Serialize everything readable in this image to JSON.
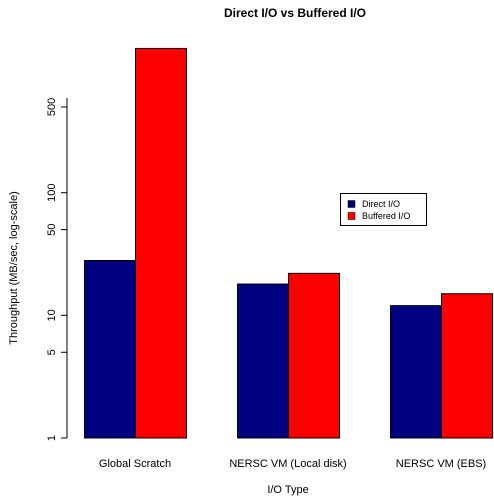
{
  "chart_data": {
    "type": "bar",
    "title": "Direct I/O vs Buffered I/O",
    "xlabel": "I/O Type",
    "ylabel": "Throughput (MB/sec, log-scale)",
    "yscale": "log",
    "ylim": [
      1,
      1600
    ],
    "yticks": [
      1,
      5,
      10,
      50,
      100,
      500
    ],
    "ytick_labels": [
      "1",
      "5",
      "10",
      "50",
      "100",
      "500"
    ],
    "categories": [
      "Global Scratch",
      "NERSC VM (Local disk)",
      "NERSC VM (EBS)"
    ],
    "series": [
      {
        "name": "Direct I/O",
        "color": "#000080",
        "values": [
          28,
          18,
          12
        ]
      },
      {
        "name": "Buffered I/O",
        "color": "#ff0000",
        "values": [
          1500,
          22,
          15
        ]
      }
    ],
    "legend": {
      "position": "right",
      "entries": [
        "Direct I/O",
        "Buffered I/O"
      ]
    },
    "grid": false
  }
}
